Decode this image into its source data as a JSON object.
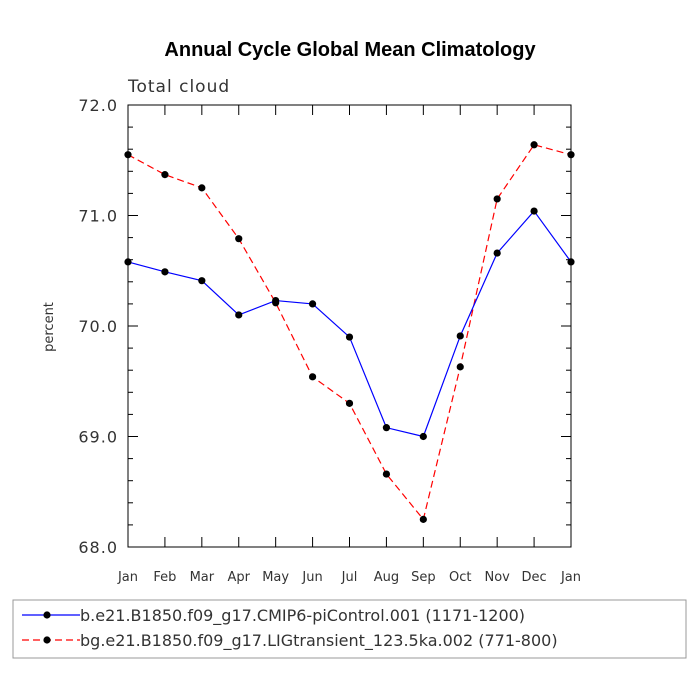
{
  "chart_data": {
    "type": "line",
    "title": "Annual Cycle Global Mean Climatology",
    "subtitle": "Total cloud",
    "ylabel": "percent",
    "xlabel": "",
    "categories": [
      "Jan",
      "Feb",
      "Mar",
      "Apr",
      "May",
      "Jun",
      "Jul",
      "Aug",
      "Sep",
      "Oct",
      "Nov",
      "Dec",
      "Jan"
    ],
    "ylim": [
      68.0,
      72.0
    ],
    "yticks": [
      "68.0",
      "69.0",
      "70.0",
      "71.0",
      "72.0"
    ],
    "grid": false,
    "legend_position": "bottom",
    "series": [
      {
        "name": "b.e21.B1850.f09_g17.CMIP6-piControl.001 (1171-1200)",
        "color": "#0000ff",
        "line_style": "solid",
        "values": [
          70.58,
          70.49,
          70.41,
          70.1,
          70.23,
          70.2,
          69.9,
          69.08,
          69.0,
          69.91,
          70.66,
          71.04,
          70.58
        ]
      },
      {
        "name": "bg.e21.B1850.f09_g17.LIGtransient_123.5ka.002 (771-800)",
        "color": "#ff0000",
        "line_style": "dashed",
        "values": [
          71.55,
          71.37,
          71.25,
          70.79,
          70.21,
          69.54,
          69.3,
          68.66,
          68.25,
          69.63,
          71.15,
          71.64,
          71.55
        ]
      }
    ]
  }
}
